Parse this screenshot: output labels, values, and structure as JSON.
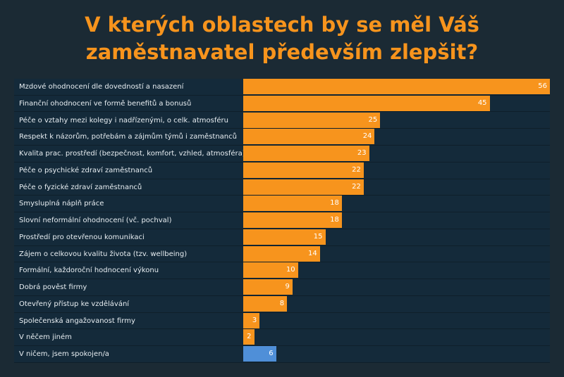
{
  "chart_data": {
    "type": "bar",
    "orientation": "horizontal",
    "title": "V kterých oblastech by se měl Váš zaměstnavatel především zlepšit?",
    "categories": [
      "Mzdové ohodnocení dle dovedností a nasazení",
      "Finanční ohodnocení ve formě benefitů a bonusů",
      "Péče o vztahy mezi kolegy i nadřízenými, o celk. atmosféru",
      "Respekt k názorům, potřebám a zájmům  týmů i zaměstnanců",
      "Kvalita prac. prostředí (bezpečnost, komfort, vzhled, atmosféra)",
      "Péče o psychické zdraví zaměstnanců",
      "Péče o fyzické zdraví zaměstnanců",
      "Smysluplná náplň práce",
      "Slovní neformální ohodnocení (vč. pochval)",
      "Prostředí pro otevřenou komunikaci",
      "Zájem o celkovou kvalitu života (tzv. wellbeing)",
      "Formální, každoroční hodnocení výkonu",
      "Dobrá pověst firmy",
      "Otevřený přístup ke vzdělávání",
      "Společenská angažovanost firmy",
      "V něčem jiném",
      "V ničem, jsem spokojen/a"
    ],
    "values": [
      56,
      45,
      25,
      24,
      23,
      22,
      22,
      18,
      18,
      15,
      14,
      10,
      9,
      8,
      3,
      2,
      6
    ],
    "xlim": [
      0,
      56
    ],
    "colors": {
      "default": "#f7941d",
      "highlight": "#4f8fd8"
    },
    "highlight_index": 16
  }
}
